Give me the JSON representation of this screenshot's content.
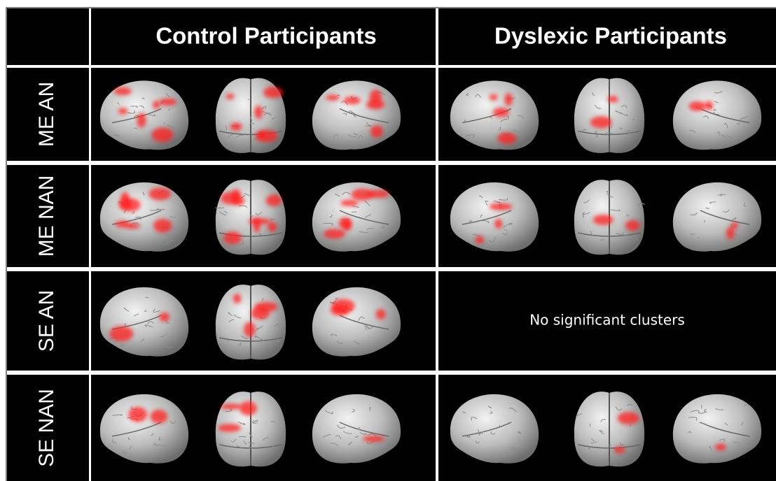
{
  "header": {
    "columns": [
      "Control Participants",
      "Dyslexic Participants"
    ]
  },
  "rows": [
    {
      "label": "ME AN"
    },
    {
      "label": "ME NAN"
    },
    {
      "label": "SE AN",
      "dyslexic_note": "No significant clusters"
    },
    {
      "label": "SE NAN"
    }
  ]
}
